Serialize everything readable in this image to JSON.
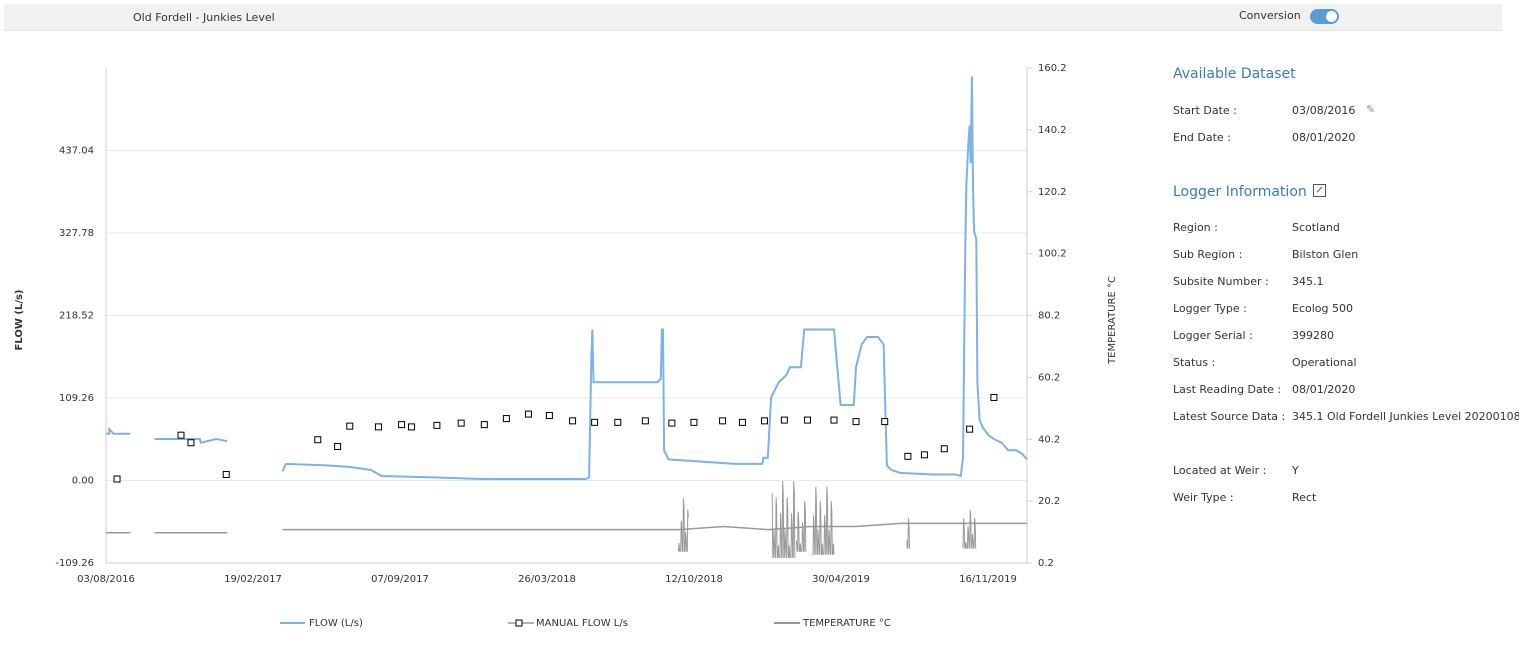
{
  "header": {
    "title": "Old Fordell - Junkies Level",
    "conversion_label": "Conversion",
    "conversion_on": true
  },
  "chart_data": {
    "type": "line",
    "x_tick_labels": [
      "03/08/2016",
      "19/02/2017",
      "07/09/2017",
      "26/03/2018",
      "12/10/2018",
      "30/04/2019",
      "16/11/2019"
    ],
    "left_axis": {
      "label": "FLOW (L/s)",
      "ticks": [
        -109.26,
        0.0,
        109.26,
        218.52,
        327.78,
        437.04
      ],
      "tick_labels": [
        "-109.26",
        "0.00",
        "109.26",
        "218.52",
        "327.78",
        "437.04"
      ],
      "range": [
        -109.26,
        546.3
      ]
    },
    "right_axis": {
      "label": "TEMPERATURE °C",
      "ticks": [
        0.2,
        20.2,
        40.2,
        60.2,
        80.2,
        100.2,
        120.2,
        140.2,
        160.2
      ],
      "tick_labels": [
        "0.2",
        "20.2",
        "40.2",
        "60.2",
        "80.2",
        "100.2",
        "120.2",
        "140.2",
        "160.2"
      ],
      "range": [
        0.2,
        160.2
      ]
    },
    "grid": "horizontal",
    "legend_position": "bottom",
    "series": [
      {
        "name": "FLOW (L/s)",
        "color": "#7eb2e4",
        "axis": "left",
        "segments": [
          [
            [
              0,
              62
            ],
            [
              3,
              62
            ],
            [
              3,
              68
            ],
            [
              7,
              62
            ],
            [
              22,
              62
            ]
          ],
          [
            [
              44,
              55
            ],
            [
              85,
              55
            ],
            [
              86,
              50
            ],
            [
              100,
              55
            ],
            [
              110,
              52
            ]
          ],
          [
            [
              160,
              12
            ],
            [
              163,
              22
            ],
            [
              200,
              20
            ],
            [
              220,
              18
            ],
            [
              240,
              14
            ],
            [
              250,
              6
            ],
            [
              300,
              4
            ],
            [
              340,
              2
            ],
            [
              380,
              2
            ],
            [
              400,
              2
            ],
            [
              420,
              2
            ],
            [
              435,
              2
            ],
            [
              438,
              4
            ]
          ],
          [
            [
              438,
              4
            ],
            [
              440,
              160
            ],
            [
              441,
              200
            ],
            [
              442,
              130
            ],
            [
              450,
              130
            ],
            [
              480,
              130
            ],
            [
              500,
              130
            ],
            [
              503,
              135
            ],
            [
              504,
              200
            ],
            [
              505,
              200
            ],
            [
              506,
              40
            ],
            [
              510,
              28
            ],
            [
              540,
              25
            ],
            [
              570,
              22
            ],
            [
              595,
              22
            ],
            [
              596,
              30
            ],
            [
              600,
              30
            ],
            [
              603,
              110
            ],
            [
              610,
              130
            ],
            [
              617,
              140
            ],
            [
              620,
              150
            ],
            [
              630,
              150
            ],
            [
              633,
              200
            ],
            [
              640,
              200
            ],
            [
              660,
              200
            ],
            [
              666,
              100
            ],
            [
              670,
              100
            ],
            [
              678,
              100
            ],
            [
              680,
              150
            ],
            [
              685,
              180
            ],
            [
              690,
              190
            ],
            [
              700,
              190
            ],
            [
              705,
              180
            ],
            [
              708,
              20
            ],
            [
              712,
              14
            ],
            [
              720,
              10
            ],
            [
              750,
              8
            ],
            [
              770,
              8
            ],
            [
              775,
              6
            ],
            [
              777,
              30
            ],
            [
              779,
              300
            ],
            [
              780,
              390
            ],
            [
              781,
              420
            ],
            [
              782,
              450
            ],
            [
              783,
              470
            ],
            [
              784,
              420
            ],
            [
              785,
              535
            ],
            [
              786,
              390
            ],
            [
              787,
              330
            ],
            [
              789,
              320
            ],
            [
              790,
              130
            ],
            [
              792,
              80
            ],
            [
              795,
              70
            ],
            [
              800,
              60
            ],
            [
              805,
              55
            ],
            [
              812,
              50
            ],
            [
              818,
              40
            ],
            [
              825,
              40
            ],
            [
              830,
              36
            ],
            [
              835,
              28
            ]
          ]
        ]
      },
      {
        "name": "MANUAL FLOW L/s",
        "color": "#000000",
        "axis": "left",
        "marker": "square",
        "points": [
          [
            10,
            2
          ],
          [
            68,
            60
          ],
          [
            77,
            50
          ],
          [
            109,
            8
          ],
          [
            192,
            54
          ],
          [
            210,
            45
          ],
          [
            221,
            72
          ],
          [
            247,
            71
          ],
          [
            268,
            74
          ],
          [
            277,
            71
          ],
          [
            300,
            73
          ],
          [
            322,
            76
          ],
          [
            343,
            74
          ],
          [
            363,
            82
          ],
          [
            383,
            88
          ],
          [
            402,
            86
          ],
          [
            423,
            79
          ],
          [
            443,
            77
          ],
          [
            464,
            77
          ],
          [
            489,
            79
          ],
          [
            513,
            76
          ],
          [
            533,
            77
          ],
          [
            559,
            79
          ],
          [
            577,
            77
          ],
          [
            597,
            79
          ],
          [
            615,
            80
          ],
          [
            636,
            80
          ],
          [
            660,
            80
          ],
          [
            680,
            78
          ],
          [
            706,
            78
          ],
          [
            727,
            32
          ],
          [
            742,
            34
          ],
          [
            760,
            42
          ],
          [
            783,
            68
          ],
          [
            805,
            110
          ]
        ]
      },
      {
        "name": "TEMPERATURE °C",
        "color": "#999999",
        "axis": "right",
        "segments": [
          [
            [
              0,
              10
            ],
            [
              22,
              10
            ]
          ],
          [
            [
              44,
              10
            ],
            [
              110,
              10
            ]
          ],
          [
            [
              160,
              11
            ],
            [
              250,
              11
            ],
            [
              300,
              11
            ],
            [
              400,
              11
            ],
            [
              520,
              11
            ],
            [
              560,
              12
            ],
            [
              600,
              11
            ],
            [
              640,
              12
            ],
            [
              680,
              12
            ],
            [
              720,
              13
            ],
            [
              770,
              13
            ],
            [
              835,
              13
            ]
          ]
        ],
        "bursts": [
          [
            519,
            528,
            4,
            22
          ],
          [
            604,
            625,
            2,
            28
          ],
          [
            626,
            635,
            4,
            21
          ],
          [
            640,
            660,
            3,
            26
          ],
          [
            726,
            729,
            5,
            18
          ],
          [
            777,
            789,
            5,
            18
          ]
        ]
      }
    ],
    "x_extent": 835
  },
  "panel": {
    "dataset_title": "Available Dataset",
    "dataset_rows": [
      {
        "key": "Start Date :",
        "value": "03/08/2016"
      },
      {
        "key": "End Date :",
        "value": "08/01/2020"
      }
    ],
    "logger_title": "Logger Information",
    "logger_rows": [
      {
        "key": "Region :",
        "value": "Scotland"
      },
      {
        "key": "Sub Region :",
        "value": "Bilston Glen"
      },
      {
        "key": "Subsite Number :",
        "value": "345.1"
      },
      {
        "key": "Logger Type :",
        "value": "Ecolog 500"
      },
      {
        "key": "Logger Serial :",
        "value": "399280"
      },
      {
        "key": "Status :",
        "value": "Operational"
      },
      {
        "key": "Last Reading Date :",
        "value": "08/01/2020"
      },
      {
        "key": "Latest Source Data :",
        "value": "345.1 Old Fordell Junkies Level 20200108"
      }
    ],
    "weir_rows": [
      {
        "key": "Located at Weir :",
        "value": "Y"
      },
      {
        "key": "Weir Type :",
        "value": "Rect"
      }
    ]
  }
}
